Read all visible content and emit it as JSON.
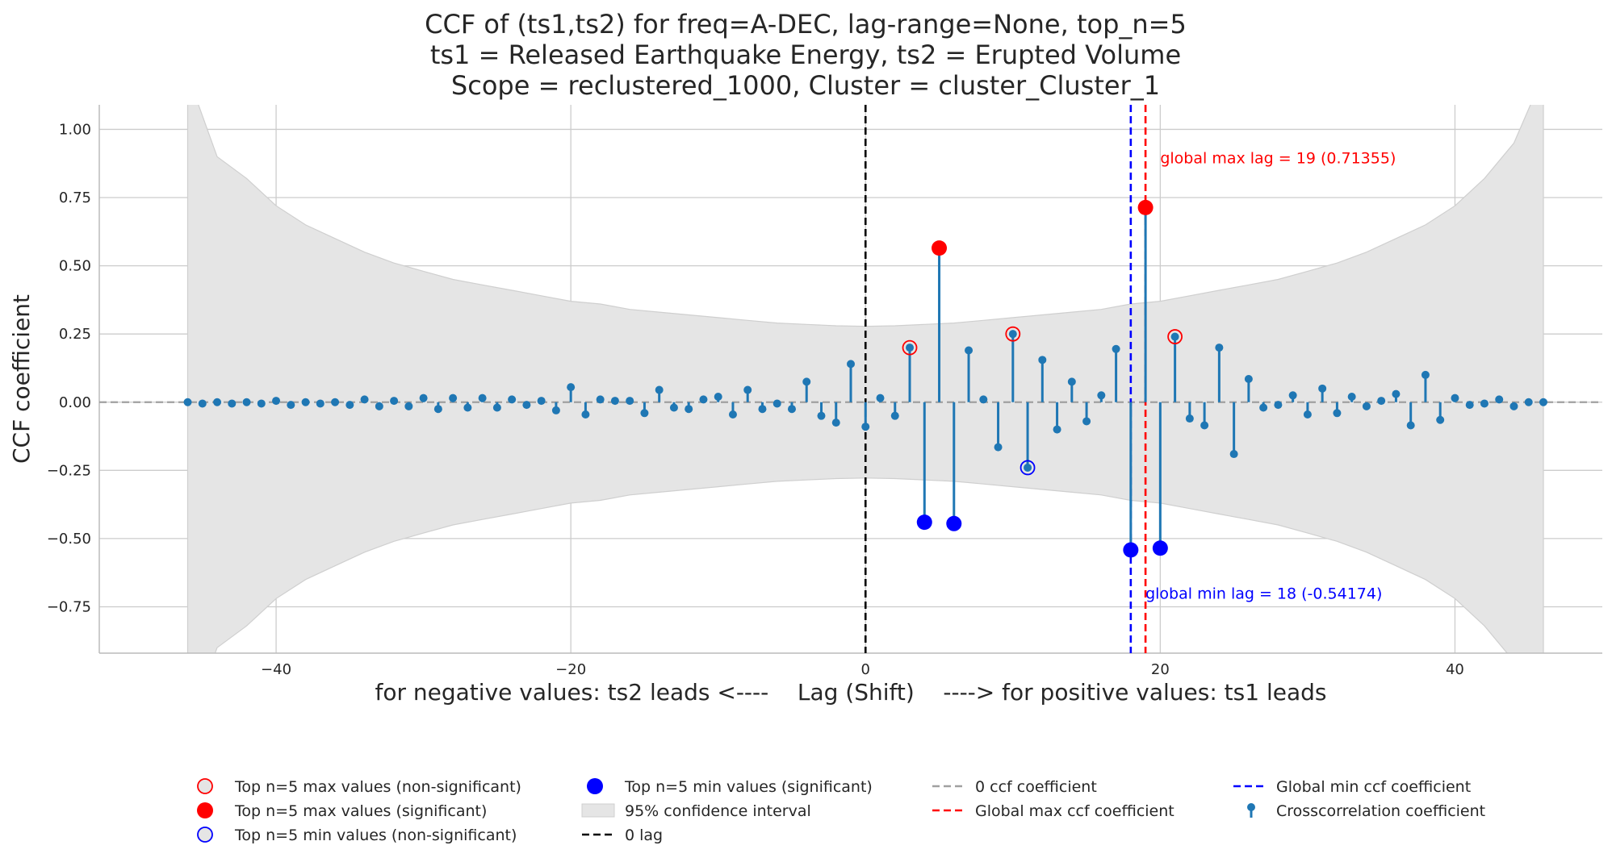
{
  "chart_data": {
    "type": "stem",
    "title_lines": [
      "CCF of (ts1,ts2) for freq=A-DEC, lag-range=None, top_n=5",
      "ts1 = Released Earthquake Energy, ts2 = Erupted Volume",
      "Scope = reclustered_1000, Cluster = cluster_Cluster_1"
    ],
    "xlabel": "for negative values: ts2 leads <----    Lag (Shift)    ----> for positive values: ts1 leads",
    "ylabel": "CCF coefficient",
    "xlim": [
      -52,
      50
    ],
    "ylim": [
      -0.92,
      1.09
    ],
    "xticks": [
      -40,
      -20,
      0,
      20,
      40
    ],
    "yticks": [
      -0.75,
      -0.5,
      -0.25,
      0.0,
      0.25,
      0.5,
      0.75,
      1.0
    ],
    "ytick_labels": [
      "−0.75",
      "−0.50",
      "−0.25",
      "0.00",
      "0.25",
      "0.50",
      "0.75",
      "1.00"
    ],
    "xtick_labels": [
      "−40",
      "−20",
      "0",
      "20",
      "40"
    ],
    "grid": true,
    "colors": {
      "stem": "#1f77b4",
      "max": "#ff0000",
      "min": "#0000ff",
      "zero_line": "#a0a0a0",
      "confidence": "#e5e5e5",
      "confidence_edge": "#cfcfcf",
      "grid": "#cccccc"
    },
    "lags": [
      -46,
      -45,
      -44,
      -43,
      -42,
      -41,
      -40,
      -39,
      -38,
      -37,
      -36,
      -35,
      -34,
      -33,
      -32,
      -31,
      -30,
      -29,
      -28,
      -27,
      -26,
      -25,
      -24,
      -23,
      -22,
      -21,
      -20,
      -19,
      -18,
      -17,
      -16,
      -15,
      -14,
      -13,
      -12,
      -11,
      -10,
      -9,
      -8,
      -7,
      -6,
      -5,
      -4,
      -3,
      -2,
      -1,
      0,
      1,
      2,
      3,
      4,
      5,
      6,
      7,
      8,
      9,
      10,
      11,
      12,
      13,
      14,
      15,
      16,
      17,
      18,
      19,
      20,
      21,
      22,
      23,
      24,
      25,
      26,
      27,
      28,
      29,
      30,
      31,
      32,
      33,
      34,
      35,
      36,
      37,
      38,
      39,
      40,
      41,
      42,
      43,
      44,
      45,
      46
    ],
    "ccf": [
      0.0,
      -0.005,
      0.0,
      -0.005,
      0.0,
      -0.005,
      0.005,
      -0.01,
      0.0,
      -0.005,
      0.0,
      -0.01,
      0.01,
      -0.015,
      0.005,
      -0.015,
      0.015,
      -0.025,
      0.015,
      -0.02,
      0.015,
      -0.02,
      0.01,
      -0.01,
      0.005,
      -0.03,
      0.055,
      -0.045,
      0.01,
      0.005,
      0.005,
      -0.04,
      0.045,
      -0.02,
      -0.025,
      0.01,
      0.02,
      -0.045,
      0.045,
      -0.025,
      -0.005,
      -0.025,
      0.075,
      -0.05,
      -0.075,
      0.14,
      -0.09,
      0.015,
      -0.05,
      0.2,
      -0.44,
      0.565,
      -0.445,
      0.19,
      0.01,
      -0.165,
      0.25,
      -0.24,
      0.155,
      -0.1,
      0.075,
      -0.07,
      0.025,
      0.195,
      -0.54174,
      0.71355,
      -0.535,
      0.24,
      -0.06,
      -0.085,
      0.2,
      -0.19,
      0.085,
      -0.02,
      -0.01,
      0.025,
      -0.045,
      0.05,
      -0.04,
      0.02,
      -0.015,
      0.005,
      0.03,
      -0.085,
      0.1,
      -0.065,
      0.015,
      -0.01,
      -0.005,
      0.01,
      -0.015,
      0.0,
      0.0
    ],
    "confidence_interval": {
      "label": "95% confidence interval",
      "lags": [
        -46,
        -44,
        -42,
        -40,
        -38,
        -36,
        -34,
        -32,
        -30,
        -28,
        -26,
        -24,
        -22,
        -20,
        -18,
        -16,
        -14,
        -12,
        -10,
        -8,
        -6,
        -4,
        -2,
        0,
        2,
        4,
        6,
        8,
        10,
        12,
        14,
        16,
        18,
        20,
        22,
        24,
        26,
        28,
        30,
        32,
        34,
        36,
        38,
        40,
        42,
        44,
        46
      ],
      "upper": [
        1.2,
        0.9,
        0.82,
        0.72,
        0.65,
        0.6,
        0.55,
        0.51,
        0.48,
        0.45,
        0.43,
        0.41,
        0.39,
        0.37,
        0.36,
        0.34,
        0.33,
        0.32,
        0.31,
        0.3,
        0.29,
        0.285,
        0.28,
        0.278,
        0.28,
        0.285,
        0.29,
        0.3,
        0.31,
        0.32,
        0.33,
        0.34,
        0.36,
        0.37,
        0.39,
        0.41,
        0.43,
        0.45,
        0.48,
        0.51,
        0.55,
        0.6,
        0.65,
        0.72,
        0.82,
        0.95,
        1.2
      ],
      "lower": [
        -1.2,
        -0.9,
        -0.82,
        -0.72,
        -0.65,
        -0.6,
        -0.55,
        -0.51,
        -0.48,
        -0.45,
        -0.43,
        -0.41,
        -0.39,
        -0.37,
        -0.36,
        -0.34,
        -0.33,
        -0.32,
        -0.31,
        -0.3,
        -0.29,
        -0.285,
        -0.28,
        -0.278,
        -0.28,
        -0.285,
        -0.29,
        -0.3,
        -0.31,
        -0.32,
        -0.33,
        -0.34,
        -0.36,
        -0.37,
        -0.39,
        -0.41,
        -0.43,
        -0.45,
        -0.48,
        -0.51,
        -0.55,
        -0.6,
        -0.65,
        -0.72,
        -0.82,
        -0.95,
        -1.2
      ]
    },
    "top_max_significant": [
      {
        "lag": 5,
        "value": 0.565
      },
      {
        "lag": 19,
        "value": 0.71355
      }
    ],
    "top_max_nonsignificant": [
      {
        "lag": 3,
        "value": 0.2
      },
      {
        "lag": 10,
        "value": 0.25
      },
      {
        "lag": 21,
        "value": 0.24
      }
    ],
    "top_min_significant": [
      {
        "lag": 4,
        "value": -0.44
      },
      {
        "lag": 6,
        "value": -0.445
      },
      {
        "lag": 18,
        "value": -0.54174
      },
      {
        "lag": 20,
        "value": -0.535
      }
    ],
    "top_min_nonsignificant": [
      {
        "lag": 11,
        "value": -0.24
      }
    ],
    "zero_lag": 0,
    "global_max_lag": 19,
    "global_min_lag": 18,
    "annotations": [
      {
        "text": "global max lag = 19 (0.71355)",
        "x": 20.0,
        "y": 0.875,
        "color": "#ff0000"
      },
      {
        "text": "global min lag = 18 (-0.54174)",
        "x": 19.0,
        "y": -0.72,
        "color": "#0000ff"
      }
    ],
    "legend": {
      "placement": "bottom",
      "columns": [
        [
          "Top n=5 max values (non-significant)",
          "Top n=5 max values (significant)",
          "Top n=5 min values (non-significant)"
        ],
        [
          "Top n=5 min values (significant)",
          "95% confidence interval",
          "0 lag"
        ],
        [
          "0 ccf coefficient",
          "Global max ccf coefficient"
        ],
        [
          "Global min ccf coefficient",
          "Crosscorrelation coefficient"
        ]
      ]
    }
  }
}
